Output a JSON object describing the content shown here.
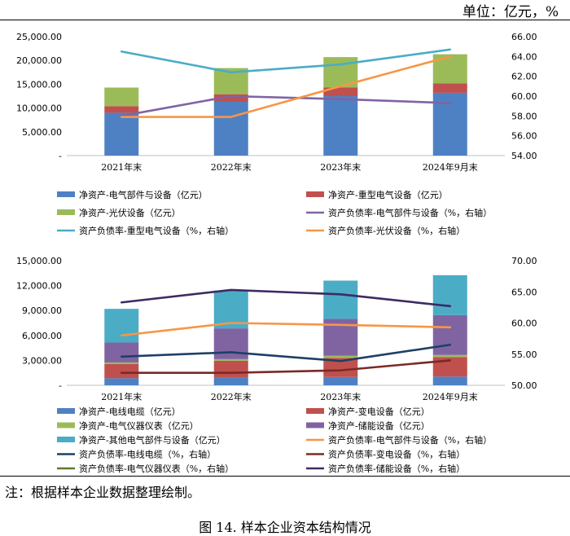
{
  "unit_label": "单位：亿元，%",
  "note": "注：根据样本企业数据整理绘制。",
  "caption": "图 14.   样本企业资本结构情况",
  "chart_data": [
    {
      "type": "bar",
      "stacked": true,
      "categories": [
        "2021年末",
        "2022年末",
        "2023年末",
        "2024年9月末"
      ],
      "ylim": [
        0,
        25000
      ],
      "yticks": [
        "-",
        "5,000.00",
        "10,000.00",
        "15,000.00",
        "20,000.00",
        "25,000.00"
      ],
      "y2lim": [
        54,
        66
      ],
      "y2ticks": [
        "54.00",
        "56.00",
        "58.00",
        "60.00",
        "62.00",
        "64.00",
        "66.00"
      ],
      "series": [
        {
          "name": "净资产-电气部件与设备（亿元）",
          "kind": "bar",
          "color": "#4e81c4",
          "values": [
            9000,
            11300,
            12500,
            13200
          ]
        },
        {
          "name": "净资产-重型电气设备（亿元）",
          "kind": "bar",
          "color": "#c0504d",
          "values": [
            1400,
            1600,
            1800,
            2000
          ]
        },
        {
          "name": "净资产-光伏设备（亿元）",
          "kind": "bar",
          "color": "#9bbb59",
          "values": [
            3900,
            5500,
            6400,
            6100
          ]
        },
        {
          "name": "资产负债率-电气部件与设备（%，右轴）",
          "kind": "line",
          "color": "#8064a2",
          "values": [
            58.0,
            60.0,
            59.7,
            59.3
          ]
        },
        {
          "name": "资产负债率-重型电气设备（%，右轴）",
          "kind": "line",
          "color": "#4bacc6",
          "values": [
            64.5,
            62.4,
            63.2,
            64.7
          ]
        },
        {
          "name": "资产负债率-光伏设备（%，右轴）",
          "kind": "line",
          "color": "#f79646",
          "values": [
            57.9,
            57.9,
            61.0,
            64.0
          ]
        }
      ]
    },
    {
      "type": "bar",
      "stacked": true,
      "categories": [
        "2021年末",
        "2022年末",
        "2023年末",
        "2024年9月末"
      ],
      "ylim": [
        0,
        15000
      ],
      "yticks": [
        "-",
        "3,000.00",
        "6,000.00",
        "9,000.00",
        "12,000.00",
        "15,000.00"
      ],
      "y2lim": [
        50,
        70
      ],
      "y2ticks": [
        "50.00",
        "55.00",
        "60.00",
        "65.00",
        "70.00"
      ],
      "series": [
        {
          "name": "净资产-电线电缆（亿元）",
          "kind": "bar",
          "color": "#4e81c4",
          "values": [
            850,
            900,
            1000,
            1050
          ]
        },
        {
          "name": "净资产-变电设备（亿元）",
          "kind": "bar",
          "color": "#c0504d",
          "values": [
            1700,
            2050,
            2300,
            2350
          ]
        },
        {
          "name": "净资产-电气仪器仪表（亿元）",
          "kind": "bar",
          "color": "#9bbb59",
          "values": [
            200,
            200,
            250,
            250
          ]
        },
        {
          "name": "净资产-储能设备（亿元）",
          "kind": "bar",
          "color": "#8064a2",
          "values": [
            2400,
            3700,
            4450,
            4800
          ]
        },
        {
          "name": "净资产-其他电气部件与设备（亿元）",
          "kind": "bar",
          "color": "#4bacc6",
          "values": [
            4050,
            4550,
            4600,
            4800
          ]
        },
        {
          "name": "资产负债率-电气部件与设备（%，右轴）",
          "kind": "line",
          "color": "#f79646",
          "values": [
            58.0,
            60.0,
            59.7,
            59.3
          ]
        },
        {
          "name": "资产负债率-电线电缆（%，右轴）",
          "kind": "line",
          "color": "#1f3f66",
          "values": [
            54.6,
            55.3,
            53.9,
            56.5
          ]
        },
        {
          "name": "资产负债率-变电设备（%，右轴）",
          "kind": "line",
          "color": "#7a2a26",
          "values": [
            52.0,
            52.0,
            52.4,
            54.0
          ]
        },
        {
          "name": "资产负债率-电气仪器仪表（%，右轴）",
          "kind": "line",
          "color": "#5c7a2e",
          "values": [
            null,
            null,
            null,
            null
          ]
        },
        {
          "name": "资产负债率-储能设备（%，右轴）",
          "kind": "line",
          "color": "#3e2a63",
          "values": [
            63.3,
            65.3,
            64.6,
            62.7
          ]
        }
      ]
    }
  ]
}
